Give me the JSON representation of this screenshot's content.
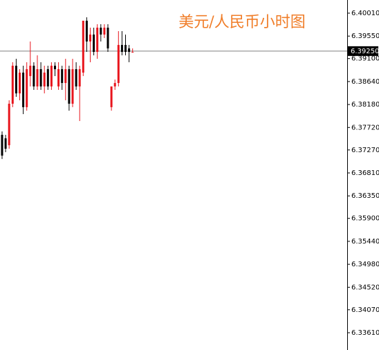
{
  "chart_data": {
    "type": "candlestick",
    "title": "美元/人民币小时图",
    "ylim": [
      6.33264,
      6.40273
    ],
    "yticks": [
      {
        "value": 6.4001,
        "label": "6.40010"
      },
      {
        "value": 6.3955,
        "label": "6.39550"
      },
      {
        "value": 6.391,
        "label": "6.39100"
      },
      {
        "value": 6.3864,
        "label": "6.38640"
      },
      {
        "value": 6.3818,
        "label": "6.38180"
      },
      {
        "value": 6.3772,
        "label": "6.37720"
      },
      {
        "value": 6.3727,
        "label": "6.37270"
      },
      {
        "value": 6.3681,
        "label": "6.36810"
      },
      {
        "value": 6.3635,
        "label": "6.36350"
      },
      {
        "value": 6.359,
        "label": "6.35900"
      },
      {
        "value": 6.3544,
        "label": "6.35440"
      },
      {
        "value": 6.3498,
        "label": "6.34980"
      },
      {
        "value": 6.3452,
        "label": "6.34520"
      },
      {
        "value": 6.3407,
        "label": "6.34070"
      },
      {
        "value": 6.3361,
        "label": "6.33610"
      }
    ],
    "current_price": {
      "value": 6.3925,
      "label": "6.39250"
    },
    "up_color": "#e8141c",
    "down_color": "#000000",
    "line_color": "#7f7f7f",
    "open": [
      6.37573,
      6.37503,
      6.37365,
      6.38196,
      6.38957,
      6.38403,
      6.38819,
      6.38127,
      6.3875,
      6.38957,
      6.38542,
      6.38888,
      6.38542,
      6.38888,
      6.38542,
      6.38957,
      6.38542,
      6.38888,
      6.38611,
      6.38888,
      6.38196,
      6.38888,
      6.38542,
      6.38819,
      6.39858,
      6.39442,
      6.39581,
      6.39234,
      6.39719,
      6.39581,
      6.39719,
      6.38127,
      6.38542,
      6.38611,
      6.39373,
      6.39373,
      6.39304,
      6.39234
    ],
    "high": [
      6.37642,
      6.37573,
      6.38265,
      6.39027,
      6.39096,
      6.38888,
      6.38957,
      6.39027,
      6.39442,
      6.39027,
      6.39165,
      6.39027,
      6.38957,
      6.38957,
      6.39027,
      6.39027,
      6.39027,
      6.38957,
      6.39096,
      6.38957,
      6.39096,
      6.39027,
      6.38957,
      6.39858,
      6.39927,
      6.39719,
      6.39719,
      6.39788,
      6.39788,
      6.39788,
      6.39788,
      6.38542,
      6.3868,
      6.3965,
      6.3965,
      6.39581,
      6.39373,
      6.39304
    ],
    "low": [
      6.37088,
      6.37226,
      6.37295,
      6.38127,
      6.38334,
      6.38265,
      6.37988,
      6.38057,
      6.38542,
      6.38473,
      6.38473,
      6.38473,
      6.38403,
      6.38473,
      6.38473,
      6.3875,
      6.38473,
      6.38473,
      6.38265,
      6.38057,
      6.38127,
      6.38473,
      6.37849,
      6.3875,
      6.39234,
      6.39027,
      6.39165,
      6.39096,
      6.39442,
      6.39511,
      6.39234,
      6.38057,
      6.38473,
      6.38542,
      6.39165,
      6.39165,
      6.39027,
      6.39234
    ],
    "close": [
      6.37157,
      6.37295,
      6.38196,
      6.38957,
      6.38403,
      6.38819,
      6.38127,
      6.38888,
      6.38957,
      6.38542,
      6.38888,
      6.38542,
      6.38819,
      6.38542,
      6.38957,
      6.38888,
      6.38888,
      6.38611,
      6.38888,
      6.38196,
      6.38888,
      6.38542,
      6.38888,
      6.39858,
      6.39442,
      6.39581,
      6.39234,
      6.39719,
      6.39581,
      6.39719,
      6.39304,
      6.38542,
      6.38611,
      6.39373,
      6.39234,
      6.39234,
      6.39234,
      6.39234
    ]
  }
}
